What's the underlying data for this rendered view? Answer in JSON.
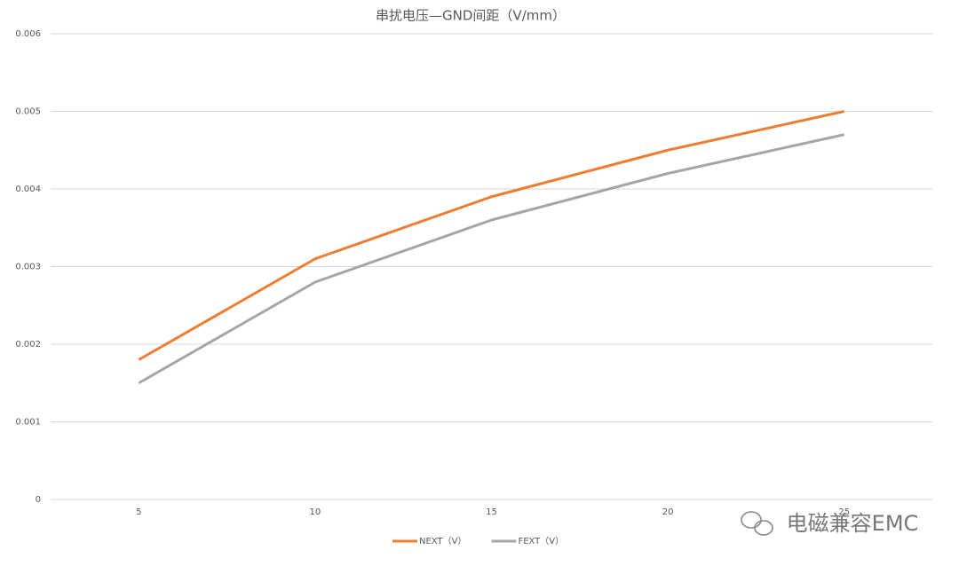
{
  "chart_data": {
    "type": "line",
    "title": "串扰电压—GND间距（V/mm）",
    "categories": [
      "5",
      "10",
      "15",
      "20",
      "25"
    ],
    "series": [
      {
        "name": "NEXT（V）",
        "color": "#ed7d31",
        "values": [
          0.0018,
          0.0031,
          0.0039,
          0.0045,
          0.005
        ]
      },
      {
        "name": "FEXT（V）",
        "color": "#a5a5a5",
        "values": [
          0.0015,
          0.0028,
          0.0036,
          0.0042,
          0.0047
        ]
      }
    ],
    "ylim": [
      0,
      0.006
    ],
    "yticks": [
      0,
      0.001,
      0.002,
      0.003,
      0.004,
      0.005,
      0.006
    ],
    "grid": true,
    "legend": "bottom"
  },
  "watermark": "电磁兼容EMC"
}
